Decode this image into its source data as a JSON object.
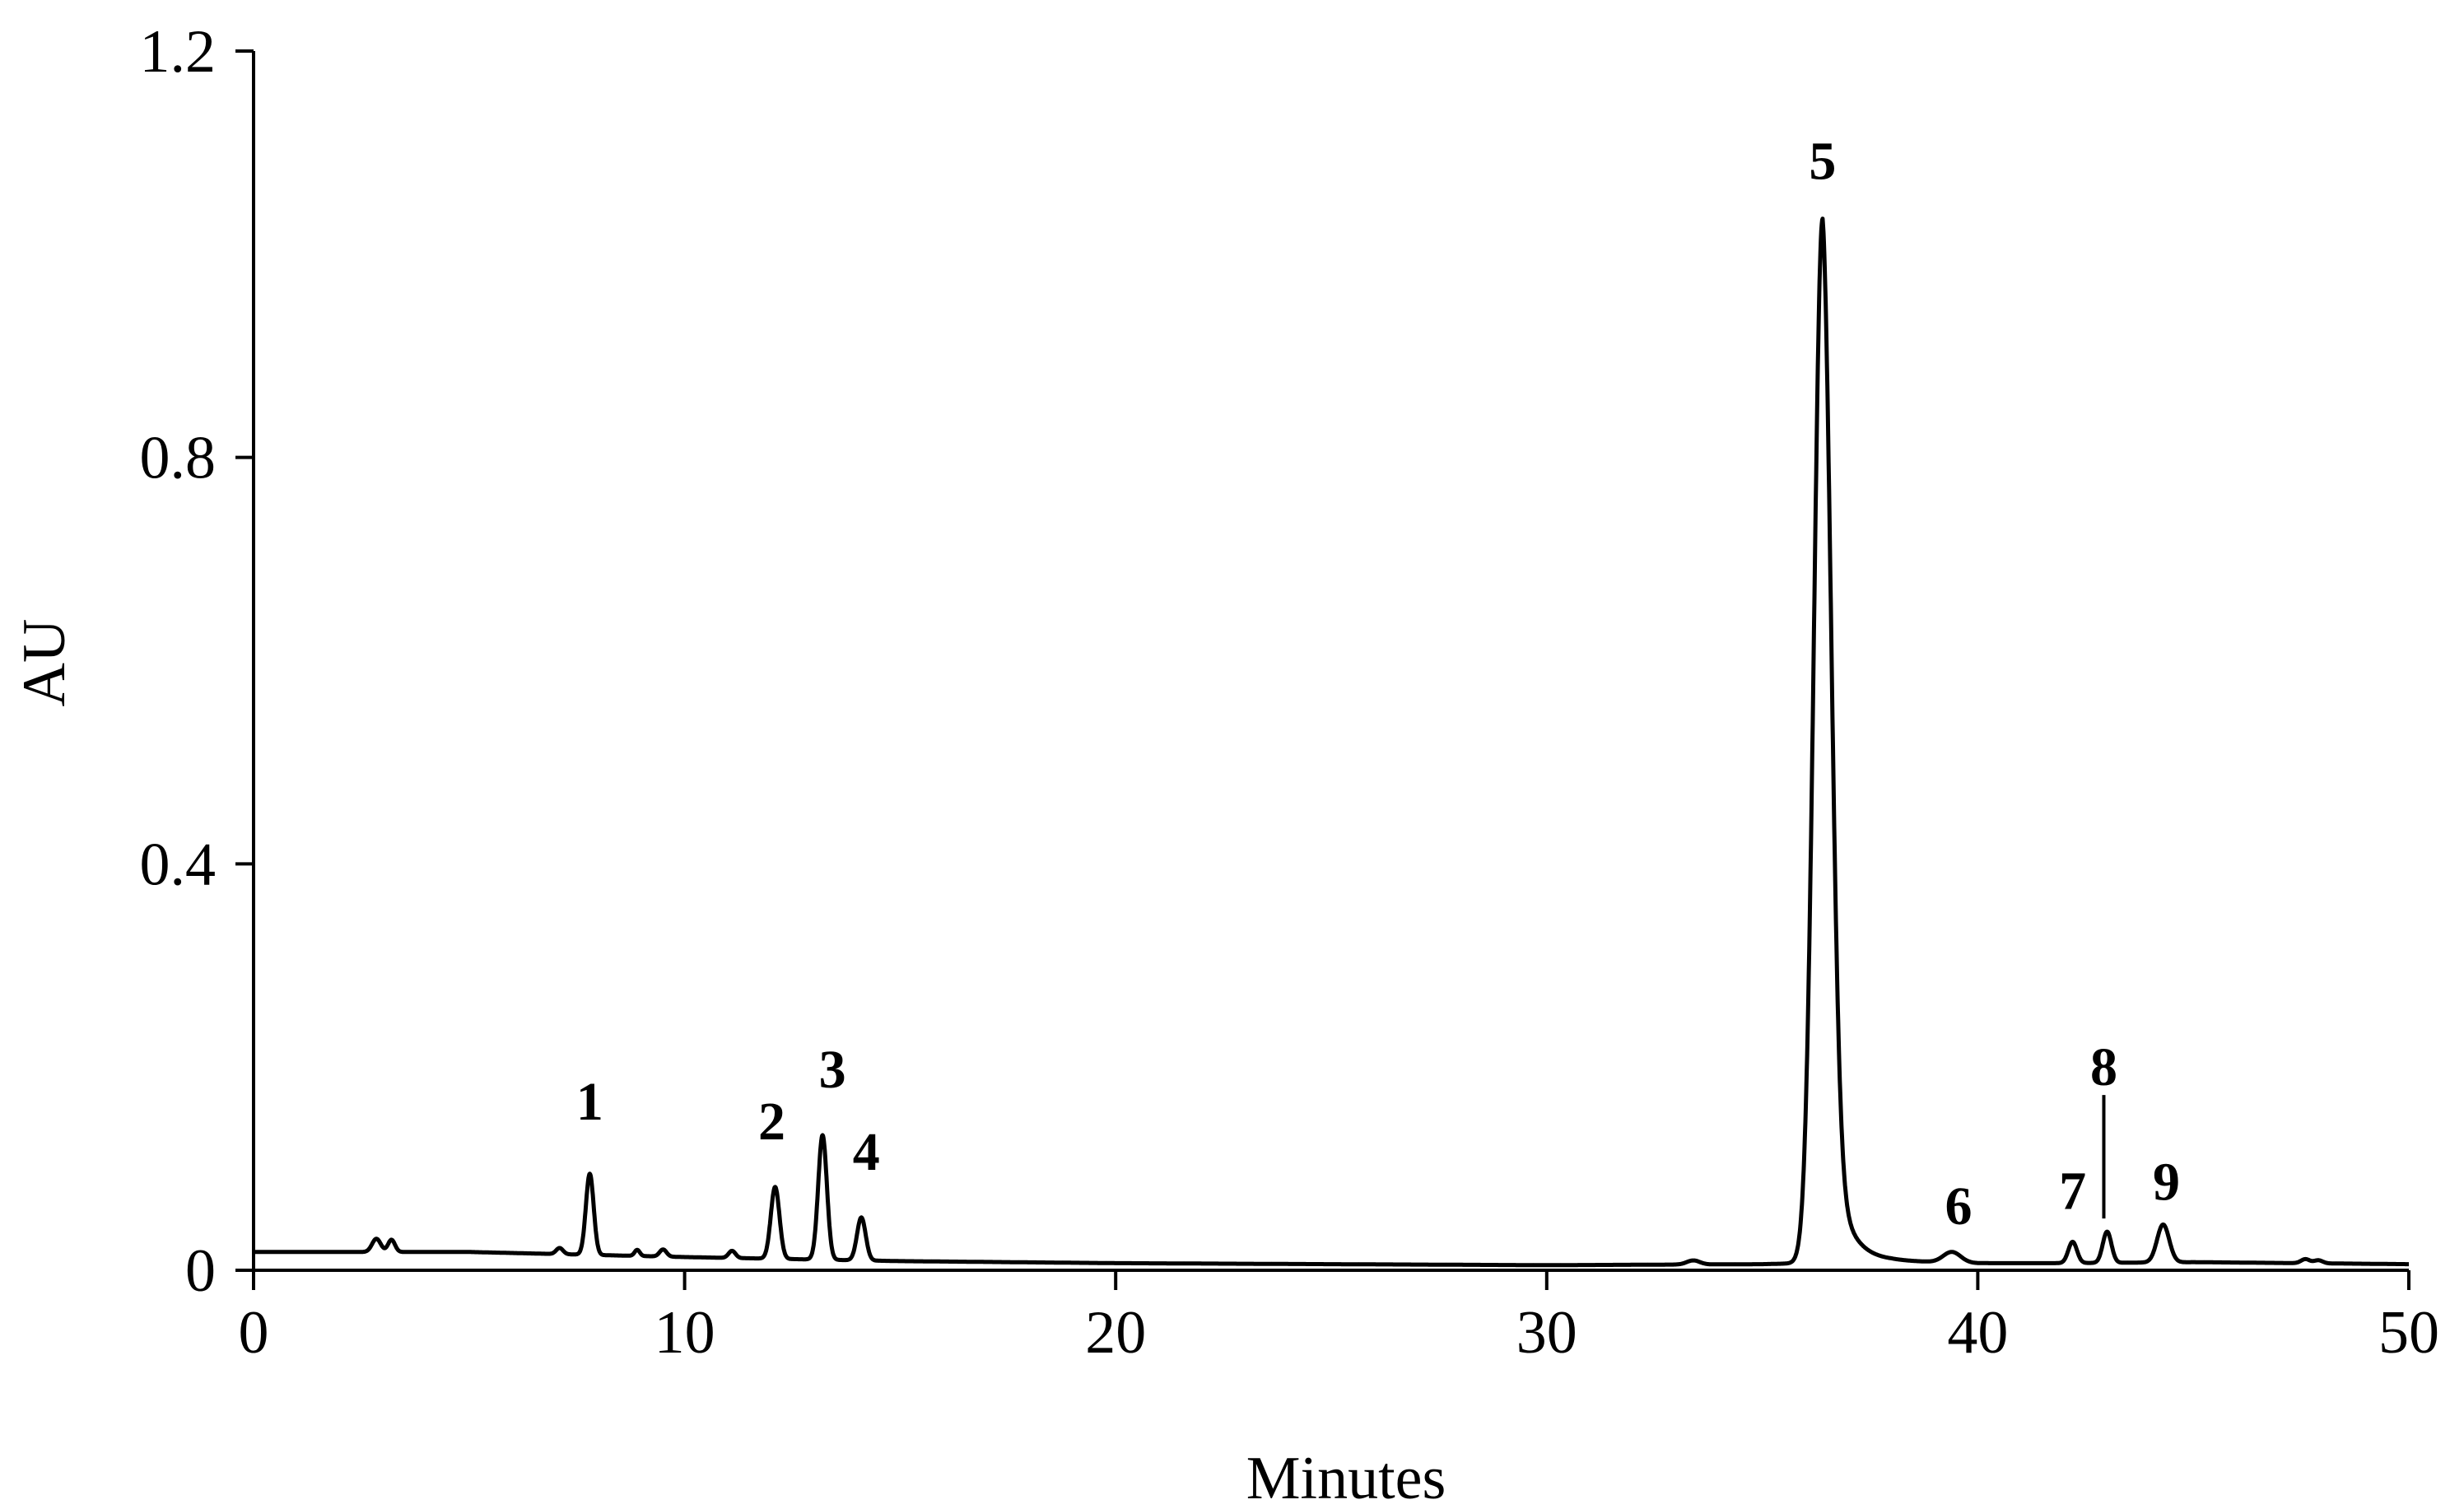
{
  "chart_data": {
    "type": "line",
    "title": "",
    "xlabel": "Minutes",
    "ylabel": "AU",
    "xlim": [
      0,
      50
    ],
    "ylim": [
      0,
      1.2
    ],
    "xticks": [
      0,
      10,
      20,
      30,
      40,
      50
    ],
    "yticks": [
      0,
      0.4,
      0.8,
      1.2
    ],
    "xtick_labels": [
      "0",
      "10",
      "20",
      "30",
      "40",
      "50"
    ],
    "ytick_labels": [
      "0",
      "0.4",
      "0.8",
      "1.2"
    ],
    "grid": false,
    "legend": "none",
    "line_color": "#000000",
    "peaks": [
      {
        "label": "1",
        "x": 7.8,
        "y": 0.095
      },
      {
        "label": "2",
        "x": 12.1,
        "y": 0.082
      },
      {
        "label": "3",
        "x": 13.2,
        "y": 0.133
      },
      {
        "label": "4",
        "x": 14.1,
        "y": 0.052
      },
      {
        "label": "5",
        "x": 36.4,
        "y": 1.035
      },
      {
        "label": "6",
        "x": 39.4,
        "y": 0.018
      },
      {
        "label": "7",
        "x": 42.2,
        "y": 0.028
      },
      {
        "label": "8",
        "x": 43.0,
        "y": 0.038
      },
      {
        "label": "9",
        "x": 44.3,
        "y": 0.045
      }
    ],
    "baseline": [
      [
        0,
        0.018
      ],
      [
        5,
        0.018
      ],
      [
        7,
        0.016
      ],
      [
        10,
        0.013
      ],
      [
        15,
        0.009
      ],
      [
        20,
        0.007
      ],
      [
        30,
        0.005
      ],
      [
        35,
        0.006
      ],
      [
        38,
        0.009
      ],
      [
        40,
        0.007
      ],
      [
        42,
        0.007
      ],
      [
        45,
        0.008
      ],
      [
        50,
        0.006
      ]
    ],
    "minor_peaks": [
      {
        "x": 2.85,
        "y": 0.013,
        "w": 0.1
      },
      {
        "x": 3.2,
        "y": 0.012,
        "w": 0.08
      },
      {
        "x": 7.1,
        "y": 0.006,
        "w": 0.08
      },
      {
        "x": 8.9,
        "y": 0.006,
        "w": 0.06
      },
      {
        "x": 9.5,
        "y": 0.007,
        "w": 0.08
      },
      {
        "x": 11.1,
        "y": 0.007,
        "w": 0.08
      },
      {
        "x": 33.4,
        "y": 0.004,
        "w": 0.15
      },
      {
        "x": 47.6,
        "y": 0.004,
        "w": 0.1
      },
      {
        "x": 47.9,
        "y": 0.003,
        "w": 0.1
      }
    ]
  }
}
